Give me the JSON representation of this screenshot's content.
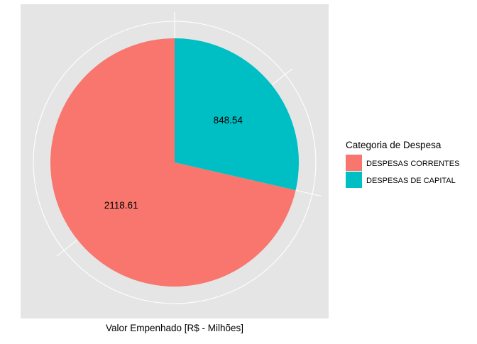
{
  "chart_data": {
    "type": "pie",
    "xlabel": "Valor Empenhado [R$ - Milhões]",
    "legend": {
      "title": "Categoria de Despesa",
      "position": "right"
    },
    "slices": [
      {
        "label": "DESPESAS CORRENTES",
        "value": 2118.61,
        "value_label": "2118.61",
        "color": "#F8766D"
      },
      {
        "label": "DESPESAS DE CAPITAL",
        "value": 848.54,
        "value_label": "848.54",
        "color": "#00BFC4"
      }
    ],
    "panel_background": "#E5E5E5",
    "grid_color": "#FFFFFF",
    "grid": true
  }
}
